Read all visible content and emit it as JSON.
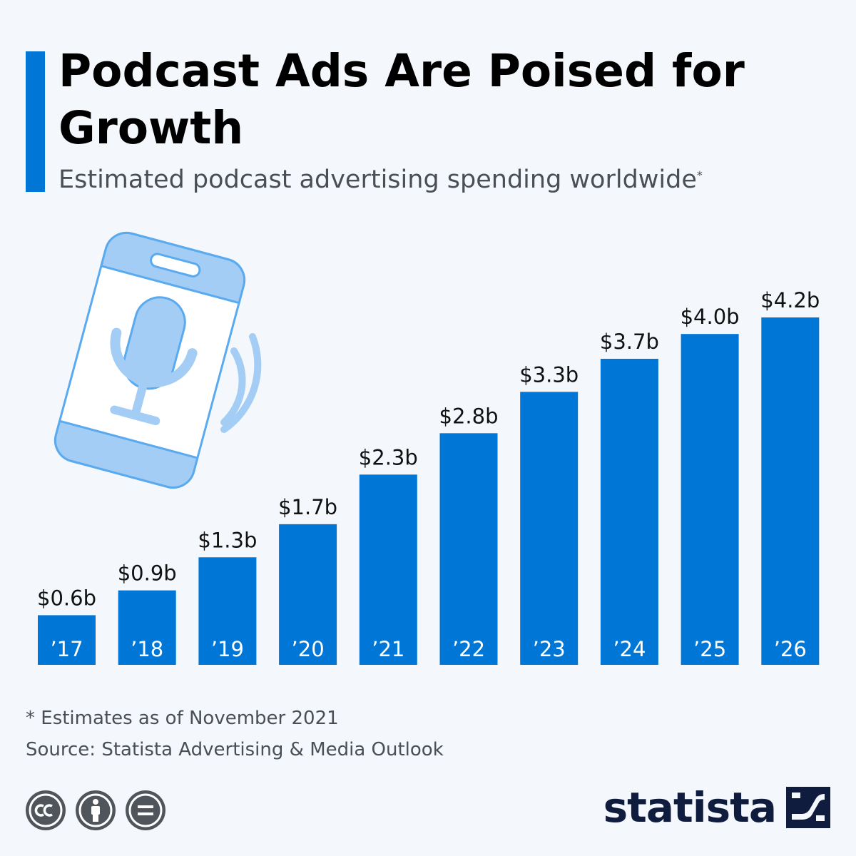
{
  "title": "Podcast Ads Are Poised for Growth",
  "subtitle": "Estimated podcast advertising spending worldwide",
  "subtitle_marker": "*",
  "footnote": "* Estimates as of November 2021",
  "source": "Source: Statista Advertising & Media Outlook",
  "brand": "statista",
  "colors": {
    "accent": "#0076d6",
    "bar": "#0076d6",
    "background": "#f4f8fc",
    "illustration_fill": "#a3cdf5",
    "illustration_stroke": "#5aaaf0"
  },
  "icons": {
    "illustration": "smartphone-microphone-icon",
    "license": [
      "creative-commons-icon",
      "attribution-icon",
      "no-derivatives-icon"
    ],
    "brand": "statista-logo-icon"
  },
  "chart_data": {
    "type": "bar",
    "categories": [
      "’17",
      "’18",
      "’19",
      "’20",
      "’21",
      "’22",
      "’23",
      "’24",
      "’25",
      "’26"
    ],
    "values": [
      0.6,
      0.9,
      1.3,
      1.7,
      2.3,
      2.8,
      3.3,
      3.7,
      4.0,
      4.2
    ],
    "value_labels": [
      "$0.6b",
      "$0.9b",
      "$1.3b",
      "$1.7b",
      "$2.3b",
      "$2.8b",
      "$3.3b",
      "$3.7b",
      "$4.0b",
      "$4.2b"
    ],
    "title": "Podcast Ads Are Poised for Growth",
    "xlabel": "",
    "ylabel": "",
    "ylim": [
      0,
      4.2
    ],
    "grid": false,
    "legend": "none"
  }
}
